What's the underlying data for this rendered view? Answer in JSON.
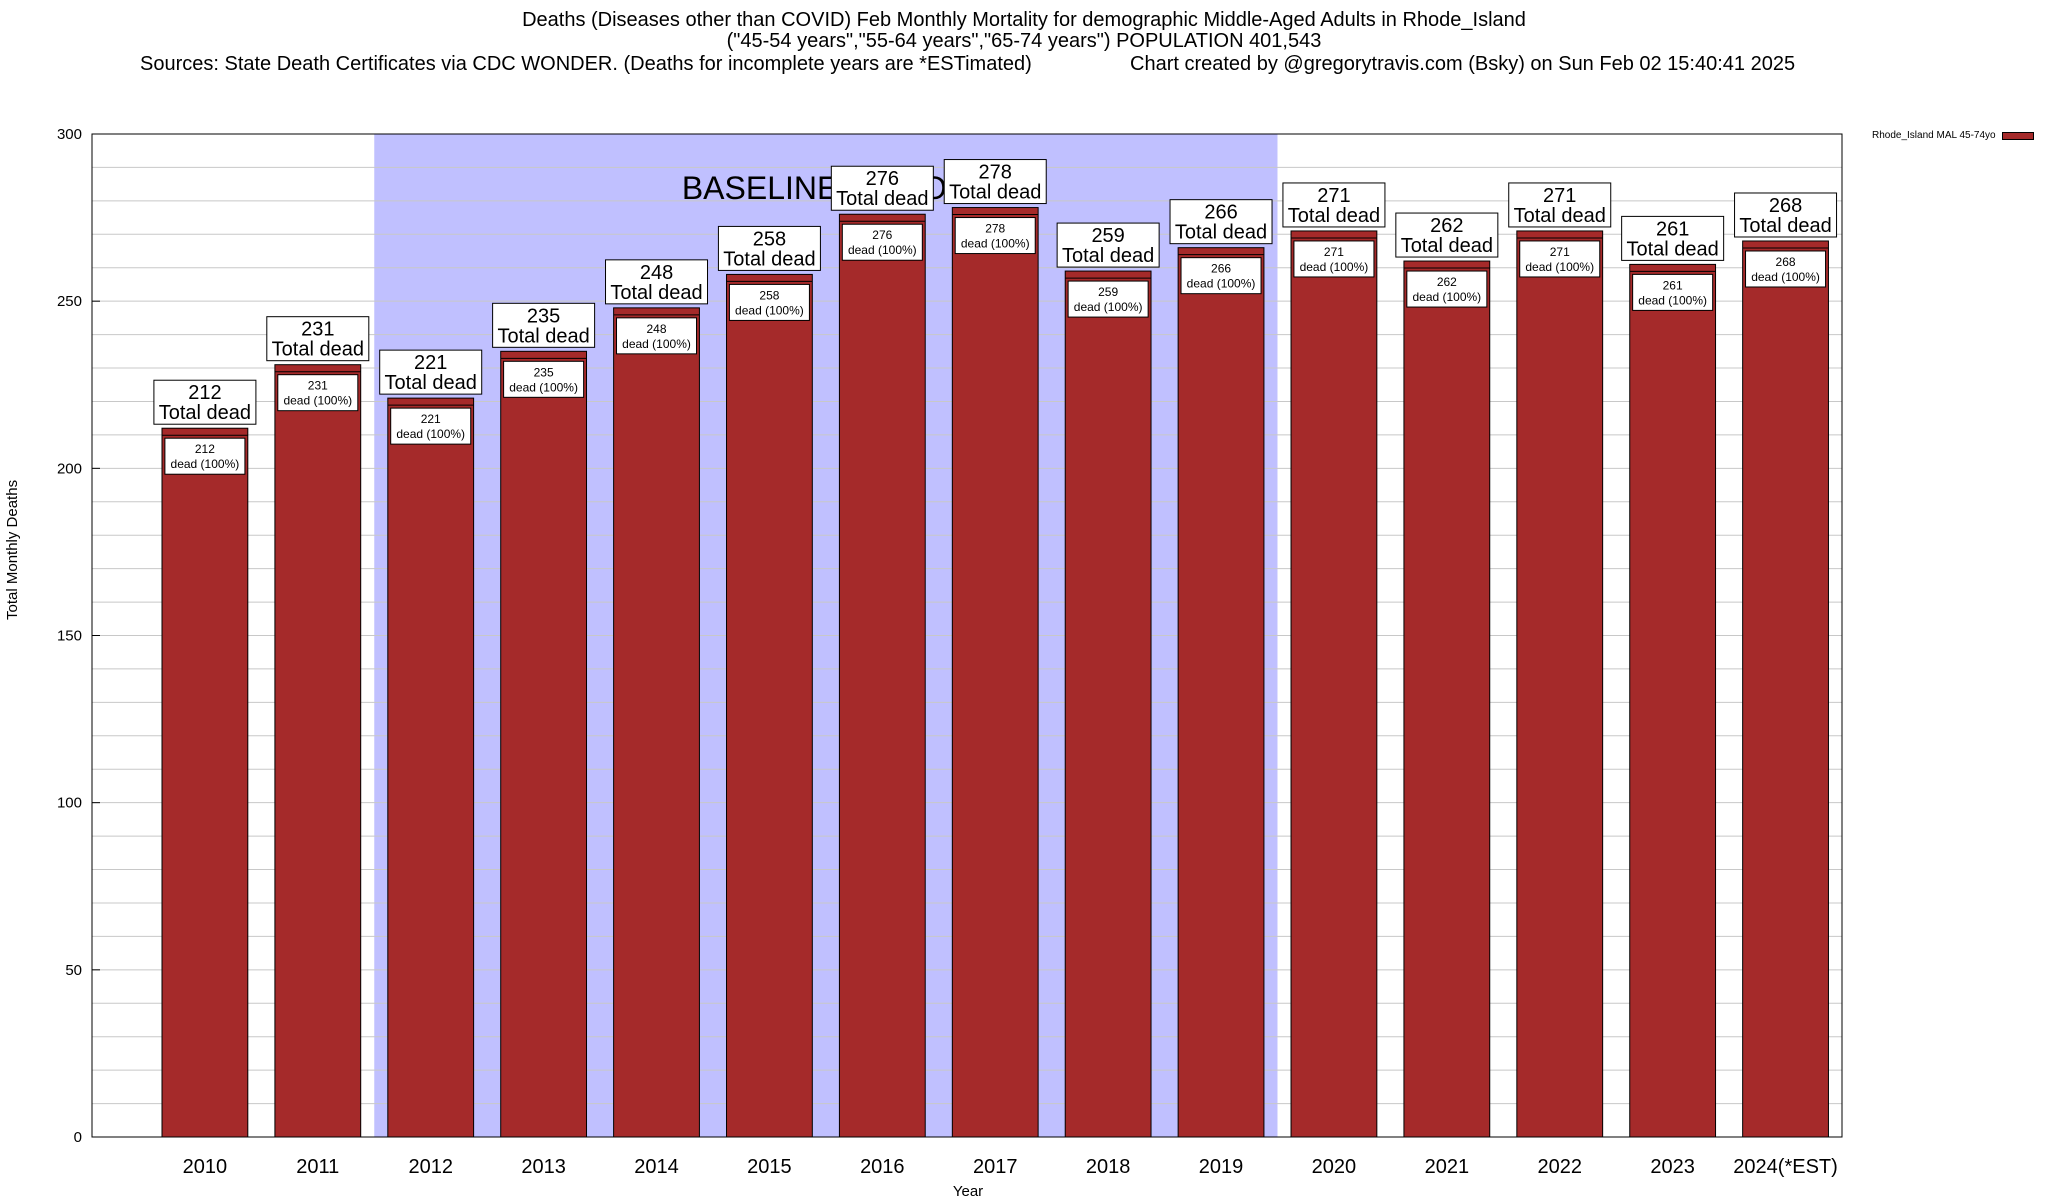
{
  "header": {
    "title_line1": "Deaths (Diseases other than COVID) Feb Monthly Mortality for demographic Middle-Aged Adults in Rhode_Island",
    "title_line2": "(\"45-54 years\",\"55-64 years\",\"65-74 years\") POPULATION 401,543",
    "sources": "Sources: State Death Certificates via CDC WONDER. (Deaths for incomplete years are *ESTimated)",
    "credit": "Chart created by @gregorytravis.com (Bsky) on Sun Feb 02 15:40:41 2025"
  },
  "colors": {
    "bar": "#a52a2a",
    "baseline_band": "#c0c0ff",
    "grid": "#c8c8c8"
  },
  "chart_data": {
    "type": "bar",
    "xlabel": "Year",
    "ylabel": "Total Monthly Deaths",
    "ylim": [
      0,
      300
    ],
    "yticks": [
      0,
      50,
      100,
      150,
      200,
      250,
      300
    ],
    "grid": true,
    "categories": [
      "2010",
      "2011",
      "2012",
      "2013",
      "2014",
      "2015",
      "2016",
      "2017",
      "2018",
      "2019",
      "2020",
      "2021",
      "2022",
      "2023",
      "2024(*EST)"
    ],
    "series": [
      {
        "name": "Rhode_Island MAL 45-74yo",
        "values": [
          212,
          231,
          221,
          235,
          248,
          258,
          276,
          278,
          259,
          266,
          271,
          262,
          271,
          261,
          268
        ]
      }
    ],
    "total_label": "Total dead",
    "inner_label": "dead (100%)",
    "baseline": {
      "label": "BASELINE PERIOD",
      "from": "2012",
      "to": "2019"
    },
    "legend_position": "top-right"
  }
}
